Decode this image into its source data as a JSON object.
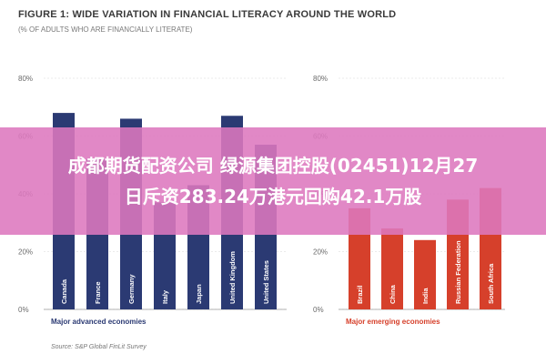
{
  "chart": {
    "title": "FIGURE 1: WIDE VARIATION IN FINANCIAL LITERACY AROUND THE WORLD",
    "subtitle": "(% OF ADULTS WHO ARE FINANCIALLY LITERATE)",
    "source": "Source: S&P Global FinLit Survey"
  },
  "overlay": {
    "line1": "成都期货配资公司 绿源集团控股(02451)12月27",
    "line2": "日斥资283.24万港元回购42.1万股"
  },
  "colors": {
    "advanced": "#2b3a73",
    "emerging": "#d6402b",
    "overlay": "#dd78be"
  },
  "chart_data": [
    {
      "type": "bar",
      "group_label": "Major advanced economies",
      "categories": [
        "Canada",
        "France",
        "Germany",
        "Italy",
        "Japan",
        "United Kingdom",
        "United States"
      ],
      "values": [
        68,
        52,
        66,
        37,
        43,
        67,
        57
      ],
      "ylim": [
        0,
        80
      ],
      "yticks": [
        "0%",
        "20%",
        "40%",
        "60%",
        "80%"
      ],
      "color": "#2b3a73"
    },
    {
      "type": "bar",
      "group_label": "Major emerging economies",
      "categories": [
        "Brazil",
        "China",
        "India",
        "Russian Federation",
        "South Africa"
      ],
      "values": [
        35,
        28,
        24,
        38,
        42
      ],
      "ylim": [
        0,
        80
      ],
      "yticks": [
        "0%",
        "20%",
        "40%",
        "60%",
        "80%"
      ],
      "color": "#d6402b"
    }
  ]
}
